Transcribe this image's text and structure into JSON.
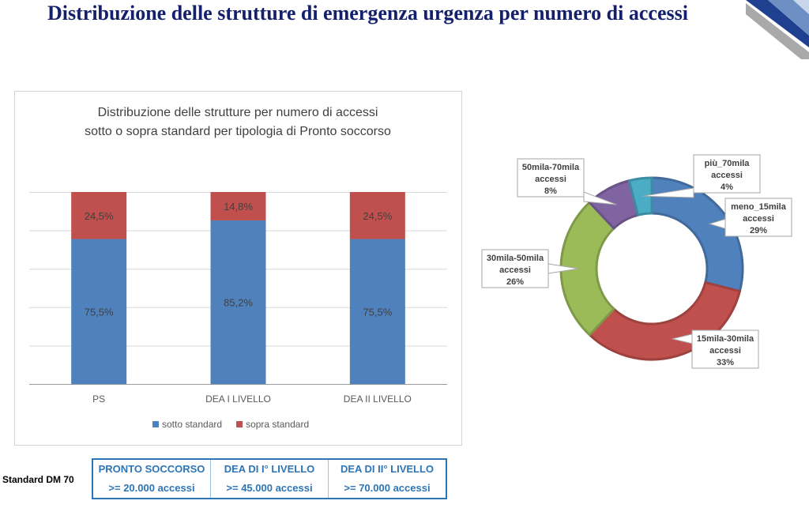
{
  "page": {
    "title": "Distribuzione delle strutture di emergenza urgenza per numero di accessi"
  },
  "chart_data": [
    {
      "type": "bar",
      "stacked": true,
      "title": "Distribuzione delle strutture per numero di accessi sotto o sopra standard per tipologia di Pronto soccorso",
      "title_lines": [
        "Distribuzione delle strutture per numero di accessi",
        "sotto o sopra standard per tipologia  di Pronto soccorso"
      ],
      "categories": [
        "PS",
        "DEA I LIVELLO",
        "DEA II LIVELLO"
      ],
      "series": [
        {
          "name": "sotto standard",
          "color": "#4f81bd",
          "values": [
            75.5,
            85.2,
            75.5
          ],
          "labels": [
            "75,5%",
            "85,2%",
            "75,5%"
          ]
        },
        {
          "name": "sopra standard",
          "color": "#c0504d",
          "values": [
            24.5,
            14.8,
            24.5
          ],
          "labels": [
            "24,5%",
            "14,8%",
            "24,5%"
          ]
        }
      ],
      "ylim": [
        0,
        100
      ],
      "grid": true,
      "legend": "bottom"
    },
    {
      "type": "pie",
      "donut": true,
      "slices": [
        {
          "name": "meno_15mila accessi",
          "value": 29,
          "label_lines": [
            "meno_15mila",
            "accessi",
            "29%"
          ],
          "color": "#4f81bd"
        },
        {
          "name": "15mila-30mila accessi",
          "value": 33,
          "label_lines": [
            "15mila-30mila",
            "accessi",
            "33%"
          ],
          "color": "#c0504d"
        },
        {
          "name": "30mila-50mila accessi",
          "value": 26,
          "label_lines": [
            "30mila-50mila",
            "accessi",
            "26%"
          ],
          "color": "#9bbb59"
        },
        {
          "name": "50mila-70mila accessi",
          "value": 8,
          "label_lines": [
            "50mila-70mila",
            "accessi",
            "8%"
          ],
          "color": "#8064a2"
        },
        {
          "name": "più_70mila accessi",
          "value": 4,
          "label_lines": [
            "più_70mila",
            "accessi",
            "4%"
          ],
          "color": "#4bacc6"
        }
      ]
    }
  ],
  "standards": {
    "label": "Standard DM 70",
    "columns": [
      {
        "name": "PRONTO SOCCORSO",
        "value": ">= 20.000 accessi"
      },
      {
        "name": "DEA DI I° LIVELLO",
        "value": ">= 45.000 accessi"
      },
      {
        "name": "DEA DI II° LIVELLO",
        "value": ">= 70.000 accessi"
      }
    ]
  },
  "colors": {
    "title": "#14206b",
    "table": "#2e75b6"
  }
}
